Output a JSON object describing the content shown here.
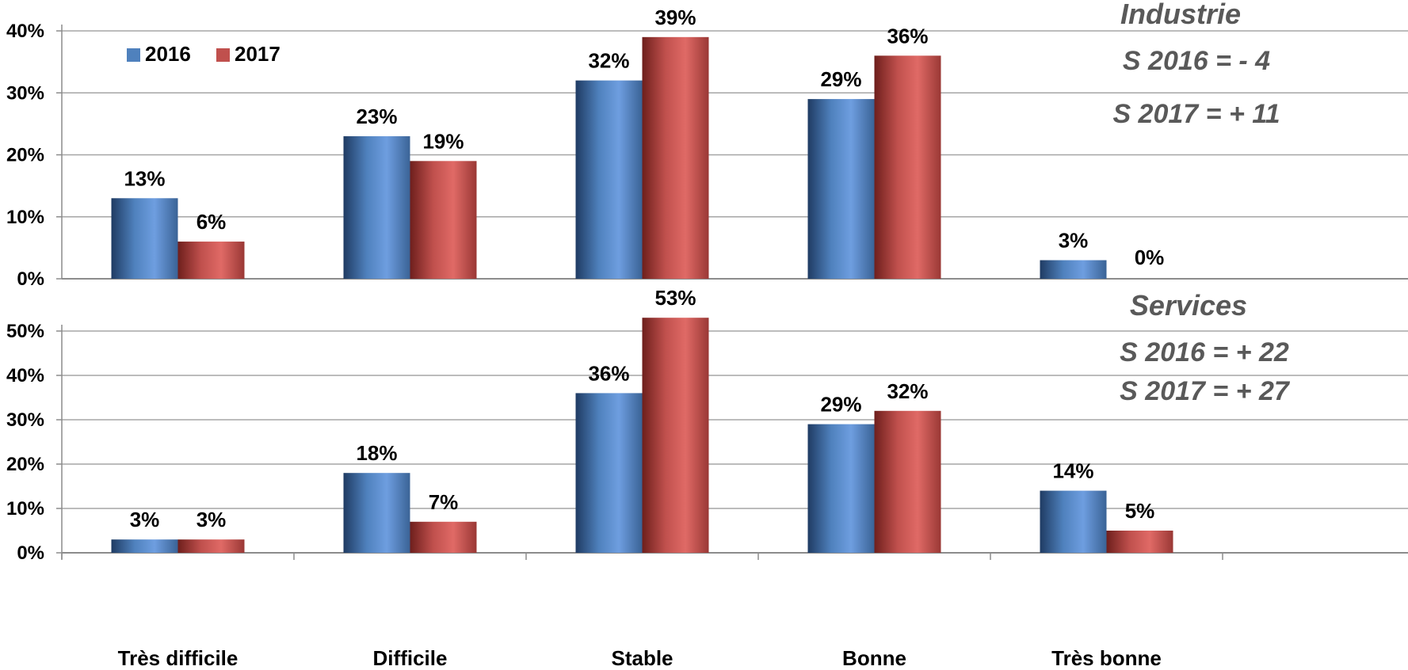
{
  "chart_data": [
    {
      "type": "bar",
      "title": "",
      "categories": [
        "Très difficile",
        "Difficile",
        "Stable",
        "Bonne",
        "Très bonne"
      ],
      "series": [
        {
          "name": "2016",
          "values": [
            13,
            23,
            32,
            29,
            3
          ]
        },
        {
          "name": "2017",
          "values": [
            6,
            19,
            39,
            36,
            0
          ]
        }
      ],
      "ylim": [
        0,
        40
      ],
      "yticks": [
        "0%",
        "10%",
        "20%",
        "30%",
        "40%"
      ],
      "grid": true,
      "legend": "top-left",
      "annotation": {
        "title": "Industrie",
        "lines": [
          "S 2016 = - 4",
          "S 2017 = + 11"
        ]
      }
    },
    {
      "type": "bar",
      "title": "",
      "categories": [
        "Très difficile",
        "Difficile",
        "Stable",
        "Bonne",
        "Très bonne"
      ],
      "series": [
        {
          "name": "2016",
          "values": [
            3,
            18,
            36,
            29,
            14
          ]
        },
        {
          "name": "2017",
          "values": [
            3,
            7,
            53,
            32,
            5
          ]
        }
      ],
      "ylim": [
        0,
        50
      ],
      "yticks": [
        "0%",
        "10%",
        "20%",
        "30%",
        "40%",
        "50%"
      ],
      "grid": true,
      "annotation": {
        "title": "Services",
        "lines": [
          "S 2016 = + 22",
          "S 2017 = + 27"
        ]
      }
    }
  ],
  "colors": {
    "2016": "#4f81bd",
    "2017": "#c0504d"
  },
  "value_suffix": "%"
}
